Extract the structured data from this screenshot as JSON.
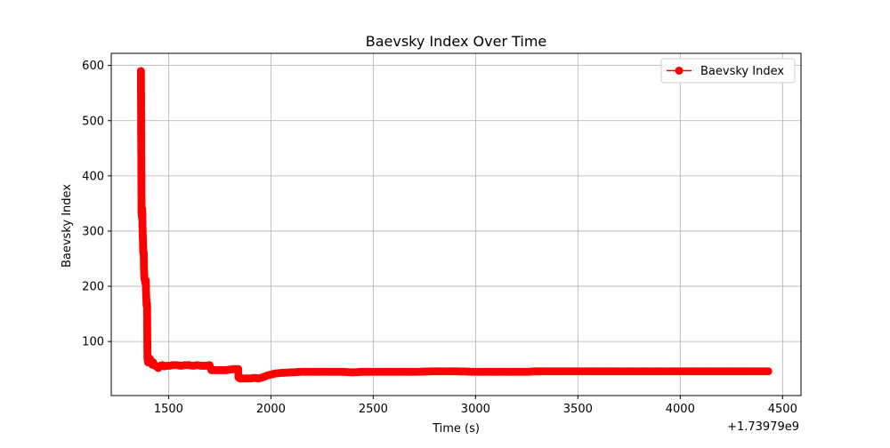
{
  "chart_data": {
    "type": "line",
    "title": "Baevsky Index Over Time",
    "xlabel": "Time (s)",
    "ylabel": "Baevsky Index",
    "x_offset_label": "+1.73979e9",
    "xlim": [
      1220,
      4590
    ],
    "ylim": [
      2,
      622
    ],
    "x_ticks": [
      1500,
      2000,
      2500,
      3000,
      3500,
      4000,
      4500
    ],
    "x_tick_labels": [
      "1500",
      "2000",
      "2500",
      "3000",
      "3500",
      "4000",
      "4500"
    ],
    "y_ticks": [
      100,
      200,
      300,
      400,
      500,
      600
    ],
    "y_tick_labels": [
      "100",
      "200",
      "300",
      "400",
      "500",
      "600"
    ],
    "grid": true,
    "legend_position": "top-right",
    "series": [
      {
        "name": "Baevsky Index",
        "color": "#ff0000",
        "marker": "circle",
        "x": [
          1365,
          1368,
          1370,
          1371,
          1372,
          1373,
          1374,
          1375,
          1376,
          1377,
          1378,
          1379,
          1380,
          1382,
          1383,
          1385,
          1387,
          1389,
          1390,
          1392,
          1393,
          1395,
          1397,
          1400,
          1405,
          1410,
          1415,
          1420,
          1425,
          1430,
          1440,
          1450,
          1460,
          1470,
          1480,
          1490,
          1500,
          1520,
          1540,
          1560,
          1580,
          1600,
          1620,
          1640,
          1660,
          1680,
          1700,
          1705,
          1710,
          1720,
          1740,
          1760,
          1780,
          1800,
          1820,
          1840,
          1842,
          1845,
          1850,
          1860,
          1880,
          1900,
          1920,
          1940,
          1960,
          1980,
          2000,
          2020,
          2050,
          2100,
          2150,
          2200,
          2300,
          2350,
          2400,
          2450,
          2500,
          2600,
          2700,
          2800,
          2900,
          3000,
          3100,
          3200,
          3250,
          3300,
          3400,
          3500,
          3600,
          3700,
          3800,
          3900,
          4000,
          4100,
          4200,
          4300,
          4400,
          4430
        ],
        "y": [
          590,
          335,
          325,
          340,
          330,
          300,
          290,
          285,
          265,
          260,
          262,
          258,
          230,
          215,
          212,
          213,
          205,
          210,
          190,
          170,
          165,
          168,
          70,
          62,
          70,
          68,
          60,
          58,
          62,
          57,
          55,
          52,
          56,
          57,
          55,
          56,
          56,
          57,
          57,
          56,
          57,
          57,
          56,
          57,
          56,
          56,
          57,
          52,
          48,
          48,
          48,
          48,
          48,
          49,
          50,
          50,
          35,
          34,
          33,
          33,
          33,
          33,
          34,
          33,
          35,
          38,
          40,
          42,
          43,
          44,
          45,
          45,
          45,
          45,
          44,
          45,
          45,
          45,
          45,
          46,
          46,
          45,
          45,
          45,
          45,
          46,
          46,
          46,
          46,
          46,
          46,
          46,
          46,
          46,
          46,
          46,
          46,
          46
        ]
      }
    ]
  }
}
